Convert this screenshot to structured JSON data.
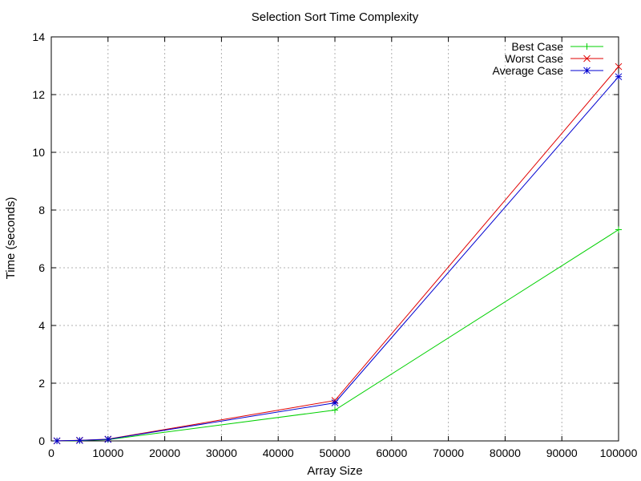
{
  "chart_data": {
    "type": "line",
    "title": "Selection Sort Time Complexity",
    "xlabel": "Array Size",
    "ylabel": "Time (seconds)",
    "xlim": [
      0,
      100000
    ],
    "ylim": [
      0,
      14
    ],
    "x_ticks": [
      0,
      10000,
      20000,
      30000,
      40000,
      50000,
      60000,
      70000,
      80000,
      90000,
      100000
    ],
    "y_ticks": [
      0,
      2,
      4,
      6,
      8,
      10,
      12,
      14
    ],
    "grid": true,
    "legend_position": "top-right",
    "x": [
      1000,
      5000,
      10000,
      50000,
      100000
    ],
    "series": [
      {
        "name": "Best Case",
        "color": "#00d000",
        "marker": "plus",
        "values": [
          0.001,
          0.012,
          0.045,
          1.07,
          7.32
        ]
      },
      {
        "name": "Worst Case",
        "color": "#e00000",
        "marker": "cross",
        "values": [
          0.002,
          0.02,
          0.06,
          1.4,
          12.97
        ]
      },
      {
        "name": "Average Case",
        "color": "#0000d0",
        "marker": "star",
        "values": [
          0.002,
          0.018,
          0.055,
          1.32,
          12.62
        ]
      }
    ]
  }
}
